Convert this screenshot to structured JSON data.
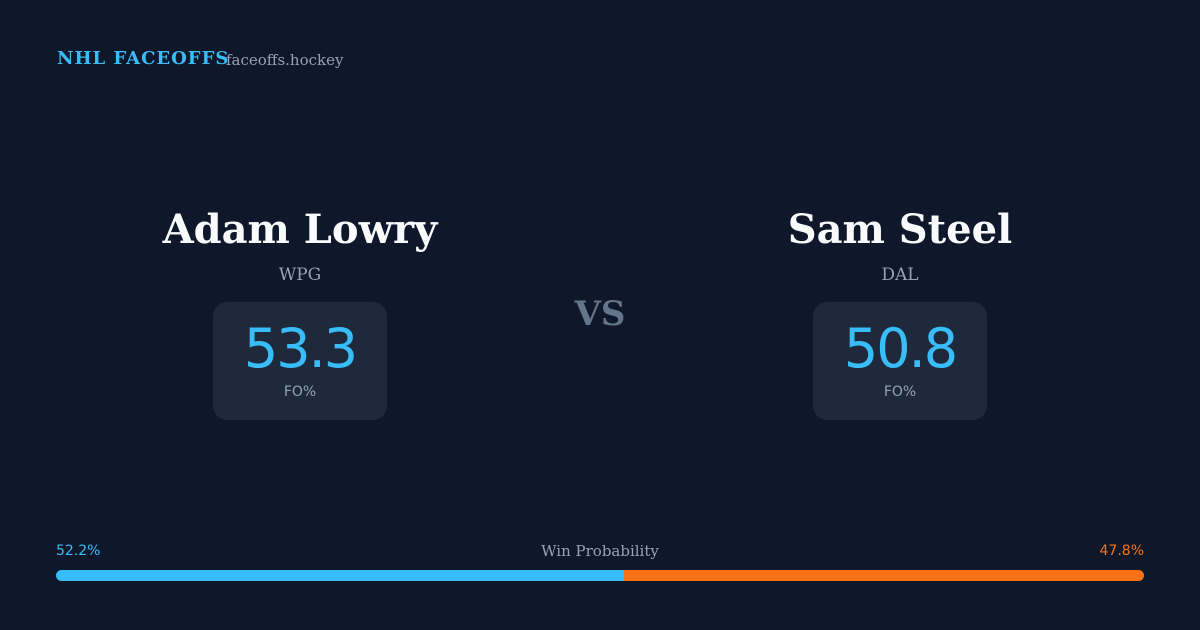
{
  "header": {
    "brand": "NHL FACEOFFS",
    "site": "faceoffs.hockey"
  },
  "players": [
    {
      "name": "Adam Lowry",
      "team": "WPG",
      "stat": 53.3,
      "stat_label": "FO%"
    },
    {
      "name": "Sam Steel",
      "team": "DAL",
      "stat": 50.8,
      "stat_label": "FO%"
    }
  ],
  "versus": "VS",
  "win_probability": {
    "label": "Win Probability",
    "values": [
      52.2,
      47.8
    ],
    "value_labels": [
      "52.2%",
      "47.8%"
    ],
    "colors": [
      "#38bdf8",
      "#f97316"
    ]
  }
}
